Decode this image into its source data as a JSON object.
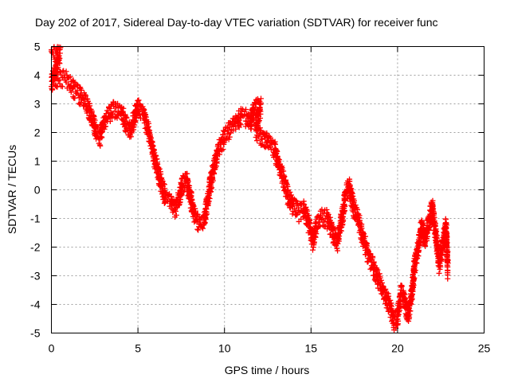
{
  "chart_data": {
    "type": "scatter",
    "title": "Day 202 of 2017, Sidereal Day-to-day VTEC variation (SDTVAR) for receiver func",
    "xlabel": "GPS time / hours",
    "ylabel": "SDTVAR / TECUs",
    "xlim": [
      0,
      25
    ],
    "ylim": [
      -5,
      5
    ],
    "xticks": [
      0,
      5,
      10,
      15,
      20,
      25
    ],
    "yticks": [
      -5,
      -4,
      -3,
      -2,
      -1,
      0,
      1,
      2,
      3,
      4,
      5
    ],
    "grid": true,
    "marker": "+",
    "color": "#ff0000",
    "series": [
      {
        "name": "SDTVAR",
        "path": [
          [
            0.0,
            4.95
          ],
          [
            0.3,
            4.75
          ],
          [
            0.5,
            4.7
          ],
          [
            0.0,
            3.7
          ],
          [
            0.4,
            3.9
          ],
          [
            0.8,
            3.85
          ],
          [
            1.2,
            3.6
          ],
          [
            1.6,
            3.3
          ],
          [
            2.0,
            3.0
          ],
          [
            2.4,
            2.4
          ],
          [
            2.6,
            1.9
          ],
          [
            2.8,
            1.8
          ],
          [
            3.0,
            2.2
          ],
          [
            3.3,
            2.6
          ],
          [
            3.6,
            2.8
          ],
          [
            4.0,
            2.7
          ],
          [
            4.3,
            2.3
          ],
          [
            4.6,
            2.0
          ],
          [
            4.8,
            2.5
          ],
          [
            5.0,
            2.9
          ],
          [
            5.3,
            2.7
          ],
          [
            5.6,
            2.0
          ],
          [
            5.9,
            1.2
          ],
          [
            6.1,
            0.8
          ],
          [
            6.3,
            0.3
          ],
          [
            6.6,
            -0.3
          ],
          [
            6.9,
            -0.4
          ],
          [
            7.1,
            -0.7
          ],
          [
            7.3,
            -0.5
          ],
          [
            7.6,
            0.2
          ],
          [
            7.8,
            0.3
          ],
          [
            8.0,
            -0.2
          ],
          [
            8.2,
            -0.8
          ],
          [
            8.4,
            -1.1
          ],
          [
            8.6,
            -1.3
          ],
          [
            8.8,
            -1.2
          ],
          [
            9.0,
            -0.5
          ],
          [
            9.2,
            0.2
          ],
          [
            9.4,
            0.8
          ],
          [
            9.6,
            1.3
          ],
          [
            9.8,
            1.6
          ],
          [
            10.0,
            1.8
          ],
          [
            10.2,
            2.0
          ],
          [
            10.5,
            2.2
          ],
          [
            10.8,
            2.4
          ],
          [
            11.0,
            2.55
          ],
          [
            11.3,
            2.5
          ],
          [
            11.5,
            2.3
          ],
          [
            11.7,
            2.75
          ],
          [
            11.9,
            2.95
          ],
          [
            12.1,
            2.9
          ],
          [
            11.8,
            2.1
          ],
          [
            12.0,
            1.9
          ],
          [
            12.3,
            1.8
          ],
          [
            12.6,
            1.6
          ],
          [
            12.9,
            1.4
          ],
          [
            13.1,
            0.9
          ],
          [
            13.4,
            0.3
          ],
          [
            13.7,
            -0.3
          ],
          [
            14.0,
            -0.6
          ],
          [
            14.3,
            -0.8
          ],
          [
            14.6,
            -0.7
          ],
          [
            14.9,
            -1.3
          ],
          [
            15.1,
            -1.8
          ],
          [
            15.3,
            -1.3
          ],
          [
            15.6,
            -1.0
          ],
          [
            15.9,
            -1.0
          ],
          [
            16.2,
            -1.4
          ],
          [
            16.5,
            -1.9
          ],
          [
            16.8,
            -1.0
          ],
          [
            17.0,
            -0.2
          ],
          [
            17.2,
            0.1
          ],
          [
            17.4,
            -0.5
          ],
          [
            17.7,
            -1.0
          ],
          [
            18.0,
            -1.7
          ],
          [
            18.3,
            -2.3
          ],
          [
            18.6,
            -2.7
          ],
          [
            18.9,
            -3.2
          ],
          [
            19.2,
            -3.6
          ],
          [
            19.5,
            -4.0
          ],
          [
            19.8,
            -4.6
          ],
          [
            20.0,
            -4.5
          ],
          [
            20.2,
            -3.6
          ],
          [
            20.4,
            -3.9
          ],
          [
            20.6,
            -4.4
          ],
          [
            20.8,
            -3.8
          ],
          [
            21.0,
            -2.6
          ],
          [
            21.2,
            -2.0
          ],
          [
            21.4,
            -1.3
          ],
          [
            21.6,
            -1.8
          ],
          [
            21.8,
            -1.2
          ],
          [
            22.0,
            -0.6
          ],
          [
            22.2,
            -1.6
          ],
          [
            22.4,
            -2.6
          ],
          [
            22.6,
            -2.0
          ],
          [
            22.8,
            -1.3
          ],
          [
            22.9,
            -2.9
          ]
        ]
      }
    ]
  }
}
